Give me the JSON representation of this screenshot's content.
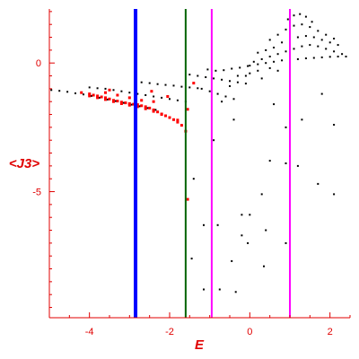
{
  "chart_data": {
    "type": "scatter",
    "title": "",
    "xlabel": "E",
    "ylabel": "<J3>",
    "xlim": [
      -5.0,
      2.5
    ],
    "ylim": [
      -9.9,
      2.1
    ],
    "x_ticks": [
      -4,
      -2,
      0,
      2
    ],
    "x_tick_labels": [
      "-4",
      "-2",
      "0",
      "2"
    ],
    "y_ticks": [
      0,
      -5
    ],
    "y_tick_labels": [
      "0",
      "-5"
    ],
    "grid": false,
    "legend": "none",
    "axis_color": "#e00000",
    "series": [
      {
        "color": "#000000",
        "points": [
          [
            -4.95,
            -1.05
          ],
          [
            -4.75,
            -1.08
          ],
          [
            -4.55,
            -1.12
          ],
          [
            -4.35,
            -1.18
          ],
          [
            -4.15,
            -1.22
          ],
          [
            -3.95,
            -1.28
          ],
          [
            -3.75,
            -1.35
          ],
          [
            -3.55,
            -1.42
          ],
          [
            -3.35,
            -1.48
          ],
          [
            -3.15,
            -1.55
          ],
          [
            -2.95,
            -1.62
          ],
          [
            -2.75,
            -1.68
          ],
          [
            -2.55,
            -1.75
          ],
          [
            -2.35,
            -1.82
          ],
          [
            -4.0,
            -0.95
          ],
          [
            -3.8,
            -0.98
          ],
          [
            -3.6,
            -1.0
          ],
          [
            -3.4,
            -1.05
          ],
          [
            -3.2,
            -1.1
          ],
          [
            -3.0,
            -1.15
          ],
          [
            -2.8,
            -1.2
          ],
          [
            -2.6,
            -1.25
          ],
          [
            -2.4,
            -1.3
          ],
          [
            -2.2,
            -1.35
          ],
          [
            -2.0,
            -1.4
          ],
          [
            -1.8,
            -1.45
          ],
          [
            -1.6,
            -1.5
          ],
          [
            -2.7,
            -0.75
          ],
          [
            -2.5,
            -0.78
          ],
          [
            -2.3,
            -0.82
          ],
          [
            -2.1,
            -0.85
          ],
          [
            -1.9,
            -0.88
          ],
          [
            -1.7,
            -0.92
          ],
          [
            -1.5,
            -0.95
          ],
          [
            -1.3,
            -0.98
          ],
          [
            -1.5,
            -0.45
          ],
          [
            -1.3,
            -0.5
          ],
          [
            -1.1,
            -0.55
          ],
          [
            -0.9,
            -0.6
          ],
          [
            -0.7,
            -0.65
          ],
          [
            -0.5,
            -0.7
          ],
          [
            -0.3,
            -0.75
          ],
          [
            -0.1,
            -0.8
          ],
          [
            -1.2,
            -1.0
          ],
          [
            -1.0,
            -1.1
          ],
          [
            -0.8,
            -1.2
          ],
          [
            -0.6,
            -1.3
          ],
          [
            -0.4,
            -1.4
          ],
          [
            -1.05,
            -0.25
          ],
          [
            -0.85,
            -0.3
          ],
          [
            -0.65,
            -0.28
          ],
          [
            -0.45,
            -0.22
          ],
          [
            -0.25,
            -0.18
          ],
          [
            -0.05,
            -0.12
          ],
          [
            0.0,
            -0.1
          ],
          [
            0.2,
            -0.05
          ],
          [
            0.4,
            0.0
          ],
          [
            0.6,
            0.05
          ],
          [
            0.8,
            0.1
          ],
          [
            1.0,
            0.12
          ],
          [
            1.2,
            0.15
          ],
          [
            1.4,
            0.18
          ],
          [
            1.6,
            0.2
          ],
          [
            1.8,
            0.22
          ],
          [
            2.0,
            0.24
          ],
          [
            2.2,
            0.25
          ],
          [
            2.4,
            0.25
          ],
          [
            0.1,
            0.05
          ],
          [
            0.3,
            0.15
          ],
          [
            0.5,
            0.25
          ],
          [
            0.7,
            0.35
          ],
          [
            0.9,
            0.45
          ],
          [
            1.1,
            0.55
          ],
          [
            1.3,
            0.65
          ],
          [
            1.5,
            0.7
          ],
          [
            1.7,
            0.65
          ],
          [
            1.9,
            0.55
          ],
          [
            2.1,
            0.45
          ],
          [
            2.3,
            0.35
          ],
          [
            0.2,
            0.4
          ],
          [
            0.4,
            0.5
          ],
          [
            0.6,
            0.6
          ],
          [
            0.8,
            0.8
          ],
          [
            1.0,
            0.9
          ],
          [
            1.2,
            1.0
          ],
          [
            1.4,
            1.05
          ],
          [
            1.6,
            1.0
          ],
          [
            1.8,
            0.9
          ],
          [
            2.0,
            0.8
          ],
          [
            2.2,
            0.7
          ],
          [
            0.5,
            0.9
          ],
          [
            0.7,
            1.1
          ],
          [
            0.9,
            1.3
          ],
          [
            1.1,
            1.45
          ],
          [
            1.3,
            1.5
          ],
          [
            1.5,
            1.4
          ],
          [
            1.7,
            1.25
          ],
          [
            1.9,
            1.1
          ],
          [
            2.1,
            0.95
          ],
          [
            0.95,
            1.7
          ],
          [
            1.1,
            1.85
          ],
          [
            1.25,
            1.9
          ],
          [
            1.4,
            1.8
          ],
          [
            1.55,
            1.6
          ],
          [
            0.0,
            -0.4
          ],
          [
            0.2,
            -0.3
          ],
          [
            0.3,
            -0.6
          ],
          [
            0.5,
            -0.2
          ],
          [
            0.7,
            -0.3
          ],
          [
            -0.3,
            -0.5
          ],
          [
            -0.5,
            -0.9
          ],
          [
            -0.7,
            -1.5
          ],
          [
            -0.1,
            -0.5
          ],
          [
            1.8,
            -1.2
          ],
          [
            0.6,
            -1.6
          ],
          [
            -0.4,
            -2.2
          ],
          [
            0.9,
            -2.5
          ],
          [
            1.3,
            -2.2
          ],
          [
            2.1,
            -2.4
          ],
          [
            -0.9,
            -3.0
          ],
          [
            0.5,
            -3.8
          ],
          [
            0.9,
            -3.9
          ],
          [
            1.2,
            -4.0
          ],
          [
            1.7,
            -4.7
          ],
          [
            2.1,
            -5.1
          ],
          [
            -1.4,
            -4.5
          ],
          [
            0.3,
            -5.1
          ],
          [
            0.0,
            -5.9
          ],
          [
            -0.2,
            -5.9
          ],
          [
            -0.8,
            -6.3
          ],
          [
            -1.15,
            -6.3
          ],
          [
            0.4,
            -6.5
          ],
          [
            -0.2,
            -6.7
          ],
          [
            -0.05,
            -7.0
          ],
          [
            0.9,
            -7.0
          ],
          [
            -1.45,
            -7.6
          ],
          [
            -0.45,
            -7.7
          ],
          [
            0.35,
            -7.9
          ],
          [
            -1.15,
            -8.8
          ],
          [
            -0.75,
            -8.8
          ],
          [
            -0.35,
            -8.9
          ]
        ]
      },
      {
        "color": "#ff0000",
        "points": [
          [
            -4.2,
            -1.15
          ],
          [
            -4.0,
            -1.2
          ],
          [
            -3.9,
            -1.25
          ],
          [
            -3.8,
            -1.28
          ],
          [
            -3.7,
            -1.32
          ],
          [
            -3.6,
            -1.35
          ],
          [
            -3.5,
            -1.4
          ],
          [
            -3.4,
            -1.45
          ],
          [
            -3.3,
            -1.48
          ],
          [
            -3.2,
            -1.52
          ],
          [
            -3.1,
            -1.55
          ],
          [
            -3.0,
            -1.58
          ],
          [
            -2.9,
            -1.6
          ],
          [
            -2.8,
            -1.62
          ],
          [
            -2.7,
            -1.66
          ],
          [
            -2.6,
            -1.7
          ],
          [
            -2.5,
            -1.75
          ],
          [
            -2.4,
            -1.82
          ],
          [
            -2.3,
            -1.9
          ],
          [
            -2.2,
            -1.98
          ],
          [
            -2.1,
            -2.05
          ],
          [
            -2.0,
            -2.12
          ],
          [
            -1.9,
            -2.2
          ],
          [
            -1.8,
            -2.3
          ],
          [
            -1.7,
            -2.42
          ],
          [
            -4.0,
            -1.28
          ],
          [
            -3.8,
            -1.35
          ],
          [
            -3.6,
            -1.42
          ],
          [
            -3.4,
            -1.5
          ],
          [
            -3.2,
            -1.58
          ],
          [
            -3.0,
            -1.64
          ],
          [
            -2.8,
            -1.7
          ],
          [
            -2.6,
            -1.78
          ],
          [
            -2.4,
            -1.88
          ],
          [
            -2.2,
            -2.0
          ],
          [
            -2.0,
            -2.12
          ],
          [
            -1.8,
            -2.22
          ],
          [
            -3.6,
            -1.15
          ],
          [
            -3.3,
            -1.25
          ],
          [
            -3.0,
            -1.35
          ],
          [
            -2.7,
            -1.45
          ],
          [
            -2.4,
            -1.5
          ],
          [
            -3.5,
            -1.05
          ],
          [
            -2.45,
            -1.1
          ],
          [
            -2.05,
            -1.3
          ],
          [
            -1.55,
            -1.8
          ],
          [
            -1.4,
            -0.78
          ],
          [
            -1.6,
            -2.65
          ],
          [
            -1.55,
            -5.3
          ]
        ]
      }
    ],
    "vertical_lines": [
      {
        "x": -2.85,
        "color": "#0000ff"
      },
      {
        "x": -1.6,
        "color": "#006400"
      },
      {
        "x": -0.95,
        "color": "#ff00ff"
      },
      {
        "x": 1.0,
        "color": "#ff00ff"
      }
    ]
  }
}
